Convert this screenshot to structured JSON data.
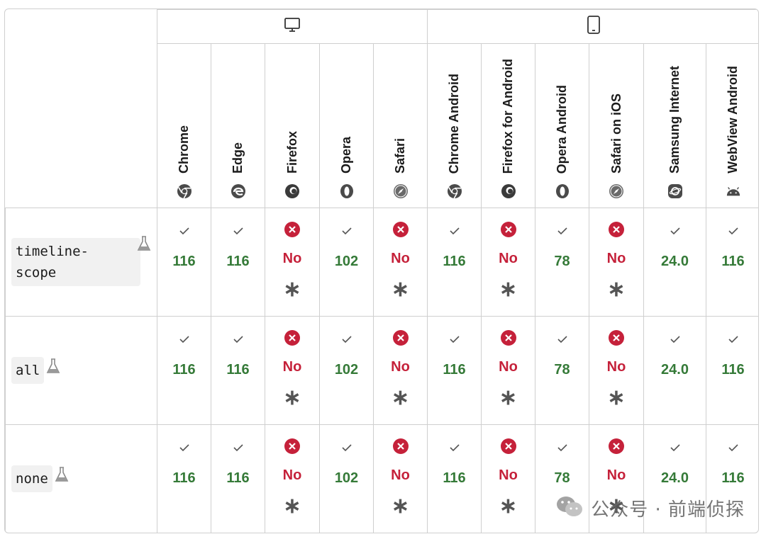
{
  "platforms": {
    "desktop": {
      "icon": "desktop-icon"
    },
    "mobile": {
      "icon": "mobile-icon"
    }
  },
  "browsers": [
    {
      "name": "Chrome",
      "icon": "chrome-icon"
    },
    {
      "name": "Edge",
      "icon": "edge-icon"
    },
    {
      "name": "Firefox",
      "icon": "firefox-icon"
    },
    {
      "name": "Opera",
      "icon": "opera-icon"
    },
    {
      "name": "Safari",
      "icon": "safari-icon"
    },
    {
      "name": "Chrome Android",
      "icon": "chrome-icon"
    },
    {
      "name": "Firefox for Android",
      "icon": "firefox-icon"
    },
    {
      "name": "Opera Android",
      "icon": "opera-icon"
    },
    {
      "name": "Safari on iOS",
      "icon": "safari-icon"
    },
    {
      "name": "Samsung Internet",
      "icon": "samsung-internet-icon"
    },
    {
      "name": "WebView Android",
      "icon": "android-icon"
    }
  ],
  "features": [
    {
      "code_lines": [
        "timeline-",
        "scope"
      ],
      "experimental": true,
      "support": [
        "116",
        "116",
        "No",
        "102",
        "No",
        "116",
        "No",
        "78",
        "No",
        "24.0",
        "116"
      ]
    },
    {
      "code_lines": [
        "all"
      ],
      "experimental": true,
      "support": [
        "116",
        "116",
        "No",
        "102",
        "No",
        "116",
        "No",
        "78",
        "No",
        "24.0",
        "116"
      ]
    },
    {
      "code_lines": [
        "none"
      ],
      "experimental": true,
      "support": [
        "116",
        "116",
        "No",
        "102",
        "No",
        "116",
        "No",
        "78",
        "No",
        "24.0",
        "116"
      ]
    }
  ],
  "note_marker": "∗",
  "watermark": {
    "text": "公众号 · 前端侦探",
    "icon": "wechat-icon"
  },
  "colors": {
    "yes": "#357a38",
    "no": "#c5213a",
    "border": "#cfcfcf",
    "code_bg": "#f1f1f1"
  }
}
